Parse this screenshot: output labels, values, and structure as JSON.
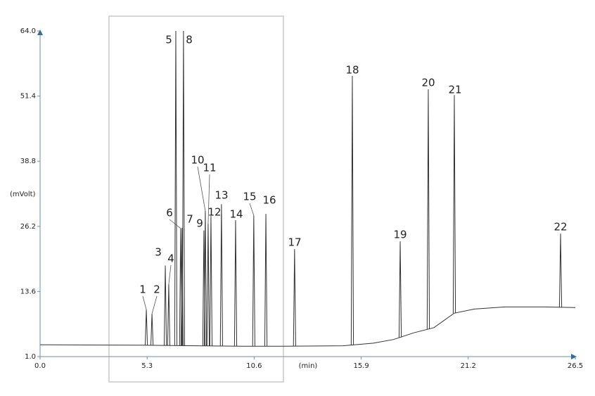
{
  "chart_data": {
    "type": "chromatogram",
    "y_label": "(mVolt)",
    "x_label": "(min)",
    "xlim": [
      0,
      26.5
    ],
    "xticks": [
      {
        "value": 0,
        "label": "0.0"
      },
      5.3,
      10.6,
      15.9,
      21.2,
      26.5
    ],
    "ylim": [
      1,
      64
    ],
    "yticks": [
      {
        "value": 1,
        "label": "1.0"
      },
      13.6,
      26.2,
      38.8,
      51.4,
      {
        "value": 64,
        "label": "64.0"
      }
    ],
    "color": "#333333",
    "baseline": {
      "x": [
        0,
        5,
        10,
        12,
        15,
        16.5,
        17.5,
        18.5,
        19.5,
        20.5,
        21.5,
        23,
        25,
        26.5
      ],
      "values": [
        3.3,
        3.2,
        3.0,
        3.0,
        3.1,
        3.6,
        4.3,
        5.6,
        6.6,
        9.4,
        10.2,
        10.6,
        10.6,
        10.5
      ]
    },
    "peaks": [
      {
        "label": "1",
        "x": 5.26,
        "height": 10.1
      },
      {
        "label": "2",
        "x": 5.54,
        "height": 9.3
      },
      {
        "label": "3",
        "x": 6.2,
        "height": 18.6
      },
      {
        "label": "4",
        "x": 6.37,
        "height": 15.0
      },
      {
        "label": "5",
        "x": 6.72,
        "height": 64
      },
      {
        "label": "6",
        "x": 6.96,
        "height": 25.8
      },
      {
        "label": "7",
        "x": 7.03,
        "height": 25.9
      },
      {
        "label": "8",
        "x": 7.1,
        "height": 64
      },
      {
        "label": "9",
        "x": 8.11,
        "height": 25.4
      },
      {
        "label": "10",
        "x": 8.18,
        "height": 29.2
      },
      {
        "label": "11",
        "x": 8.32,
        "height": 26.7
      },
      {
        "label": "12",
        "x": 8.46,
        "height": 28.2
      },
      {
        "label": "13",
        "x": 8.98,
        "height": 30.5
      },
      {
        "label": "14",
        "x": 9.68,
        "height": 27.4
      },
      {
        "label": "15",
        "x": 10.58,
        "height": 28.3
      },
      {
        "label": "16",
        "x": 11.18,
        "height": 28.6
      },
      {
        "label": "17",
        "x": 12.6,
        "height": 21.8
      },
      {
        "label": "18",
        "x": 15.46,
        "height": 55.3
      },
      {
        "label": "19",
        "x": 17.83,
        "height": 23.3
      },
      {
        "label": "20",
        "x": 19.22,
        "height": 52.7
      },
      {
        "label": "21",
        "x": 20.51,
        "height": 51.6
      },
      {
        "label": "22",
        "x": 25.77,
        "height": 24.8
      }
    ]
  }
}
